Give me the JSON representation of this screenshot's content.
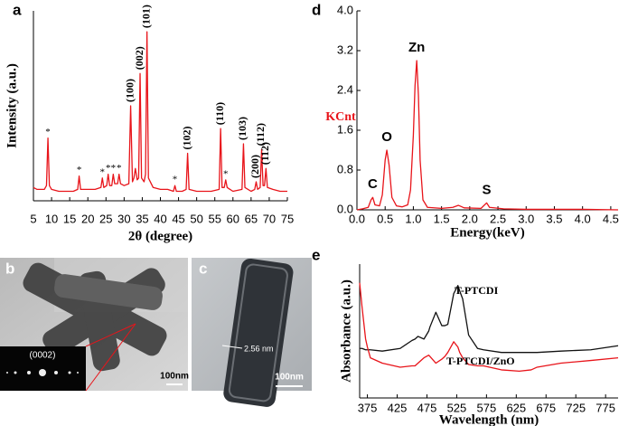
{
  "chart_data": [
    {
      "type": "line",
      "panel": "a",
      "xlabel": "2θ (degree)",
      "ylabel": "Intensity (a.u.)",
      "x": [
        5,
        6,
        7,
        8,
        8.6,
        9,
        9.4,
        10,
        12,
        14,
        16,
        17.2,
        17.6,
        18,
        20,
        22,
        23.6,
        24,
        24.4,
        25.2,
        25.6,
        26,
        26.6,
        27,
        27.4,
        28.2,
        28.6,
        29,
        30,
        31.3,
        31.8,
        32.3,
        32.7,
        33.1,
        33.6,
        34,
        34.4,
        34.8,
        35.5,
        35.9,
        36.3,
        36.7,
        38,
        40,
        42,
        43.6,
        44,
        44.4,
        46,
        47.1,
        47.5,
        47.9,
        50,
        52,
        54,
        56.2,
        56.6,
        57,
        57.6,
        58,
        58.4,
        60,
        62.5,
        62.9,
        63.3,
        65,
        66,
        66.4,
        66.8,
        67.5,
        67.9,
        68.3,
        68.7,
        69.1,
        69.5,
        71,
        73,
        75
      ],
      "series": [
        {
          "color": "#e8141a",
          "values": [
            7,
            6,
            6,
            6,
            8,
            33,
            8,
            6,
            5,
            5,
            5,
            6,
            13,
            6,
            6,
            6,
            7,
            12,
            7,
            8,
            14,
            8,
            8,
            14,
            9,
            9,
            14,
            9,
            8,
            9,
            50,
            10,
            12,
            17,
            11,
            12,
            67,
            12,
            10,
            14,
            89,
            12,
            7,
            6,
            6,
            5,
            8,
            5,
            5,
            6,
            25,
            6,
            5,
            5,
            5,
            6,
            38,
            7,
            7,
            11,
            7,
            5,
            6,
            30,
            7,
            5,
            6,
            10,
            6,
            7,
            27,
            8,
            8,
            17,
            7,
            6,
            5,
            5
          ]
        }
      ],
      "xlim": [
        5,
        75
      ],
      "xticks": [
        5,
        10,
        15,
        20,
        25,
        30,
        35,
        40,
        45,
        50,
        55,
        60,
        65,
        70,
        75
      ],
      "ylim": [
        0,
        100
      ],
      "annotations": [
        {
          "text": "(100)",
          "x": 31.8
        },
        {
          "text": "(002)",
          "x": 34.4
        },
        {
          "text": "(101)",
          "x": 36.3
        },
        {
          "text": "(102)",
          "x": 47.5
        },
        {
          "text": "(110)",
          "x": 56.6
        },
        {
          "text": "(103)",
          "x": 62.9
        },
        {
          "text": "(200)",
          "x": 66.4
        },
        {
          "text": "(112)",
          "x": 67.9
        },
        {
          "text": "(112)",
          "x": 69.1
        },
        {
          "text": "*",
          "x": 9
        },
        {
          "text": "*",
          "x": 17.6
        },
        {
          "text": "*",
          "x": 24
        },
        {
          "text": "*",
          "x": 25.6
        },
        {
          "text": "*",
          "x": 27
        },
        {
          "text": "*",
          "x": 28.6
        },
        {
          "text": "*",
          "x": 44
        },
        {
          "text": "*",
          "x": 58
        }
      ]
    },
    {
      "type": "line",
      "panel": "d",
      "xlabel": "Energy(keV)",
      "ylabel": "KCnt",
      "ylabel_color": "#e8141a",
      "x": [
        0,
        0.1,
        0.2,
        0.25,
        0.28,
        0.32,
        0.4,
        0.45,
        0.5,
        0.53,
        0.57,
        0.62,
        0.7,
        0.8,
        0.9,
        0.95,
        1.0,
        1.03,
        1.06,
        1.09,
        1.12,
        1.17,
        1.25,
        1.5,
        1.7,
        1.8,
        1.9,
        2.2,
        2.3,
        2.35,
        2.6,
        3,
        3.5,
        4,
        4.63
      ],
      "series": [
        {
          "color": "#e8141a",
          "values": [
            0,
            0.02,
            0.05,
            0.2,
            0.25,
            0.1,
            0.08,
            0.3,
            1.0,
            1.2,
            0.9,
            0.25,
            0.08,
            0.06,
            0.1,
            0.4,
            1.5,
            2.5,
            3.0,
            2.3,
            1.0,
            0.2,
            0.05,
            0.03,
            0.05,
            0.09,
            0.04,
            0.03,
            0.14,
            0.05,
            0.02,
            0.01,
            0.01,
            0.01,
            0
          ]
        }
      ],
      "xlim": [
        0,
        4.63
      ],
      "xticks": [
        {
          "value": 0,
          "label": "0.0"
        },
        {
          "value": 0.5,
          "label": "0.5"
        },
        {
          "value": 1,
          "label": "1.0"
        },
        {
          "value": 1.5,
          "label": "1.5"
        },
        {
          "value": 2,
          "label": "2.0"
        },
        {
          "value": 2.5,
          "label": "2.5"
        },
        {
          "value": 3,
          "label": "3.0"
        },
        {
          "value": 3.5,
          "label": "3.5"
        },
        {
          "value": 4,
          "label": "4.0"
        },
        {
          "value": 4.5,
          "label": "4.5"
        }
      ],
      "ylim": [
        0,
        4
      ],
      "yticks": [
        {
          "value": 0,
          "label": "0.0"
        },
        {
          "value": 0.8,
          "label": "0.8"
        },
        {
          "value": 1.6,
          "label": "1.6"
        },
        {
          "value": 2.4,
          "label": "2.4"
        },
        {
          "value": 3.2,
          "label": "3.2"
        },
        {
          "value": 4,
          "label": "4.0"
        }
      ],
      "annotations": [
        {
          "text": "C",
          "x": 0.28
        },
        {
          "text": "O",
          "x": 0.53
        },
        {
          "text": "Zn",
          "x": 1.06
        },
        {
          "text": "S",
          "x": 2.3
        }
      ]
    },
    {
      "type": "line",
      "panel": "e",
      "xlabel": "Wavelength (nm)",
      "ylabel": "Absorbance (a.u.)",
      "x": [
        362,
        366,
        372,
        375,
        380,
        400,
        430,
        450,
        455,
        460,
        470,
        478,
        480,
        490,
        500,
        505,
        510,
        520,
        527,
        530,
        535,
        545,
        560,
        570,
        600,
        630,
        650,
        660,
        700,
        750,
        796
      ],
      "series": [
        {
          "name": "T-PTCDI",
          "color": "#111111",
          "values": [
            37,
            37,
            36,
            36,
            36,
            35,
            37,
            43,
            44,
            46,
            44,
            50,
            53,
            64,
            54,
            54,
            55,
            78,
            84,
            80,
            74,
            47,
            37,
            36,
            34,
            34,
            34,
            34,
            35,
            36,
            39
          ]
        },
        {
          "name": "T-PTCDI/ZnO",
          "color": "#e8141a",
          "values": [
            86,
            68,
            44,
            38,
            30,
            26,
            23,
            24,
            24,
            26,
            30,
            32,
            31,
            26,
            29,
            31,
            34,
            42,
            38,
            34,
            30,
            25,
            24,
            24,
            21,
            20,
            21,
            23,
            26,
            28,
            30
          ]
        }
      ],
      "xlim": [
        362,
        796
      ],
      "xticks": [
        375,
        425,
        475,
        525,
        575,
        625,
        675,
        725,
        775
      ],
      "ylim": [
        0,
        100
      ]
    }
  ],
  "images": [
    {
      "panel": "b",
      "inset_label": "(0002)",
      "scale_bar": "100nm"
    },
    {
      "panel": "c",
      "measurement": "2.56 nm",
      "scale_bar": "100nm"
    }
  ]
}
